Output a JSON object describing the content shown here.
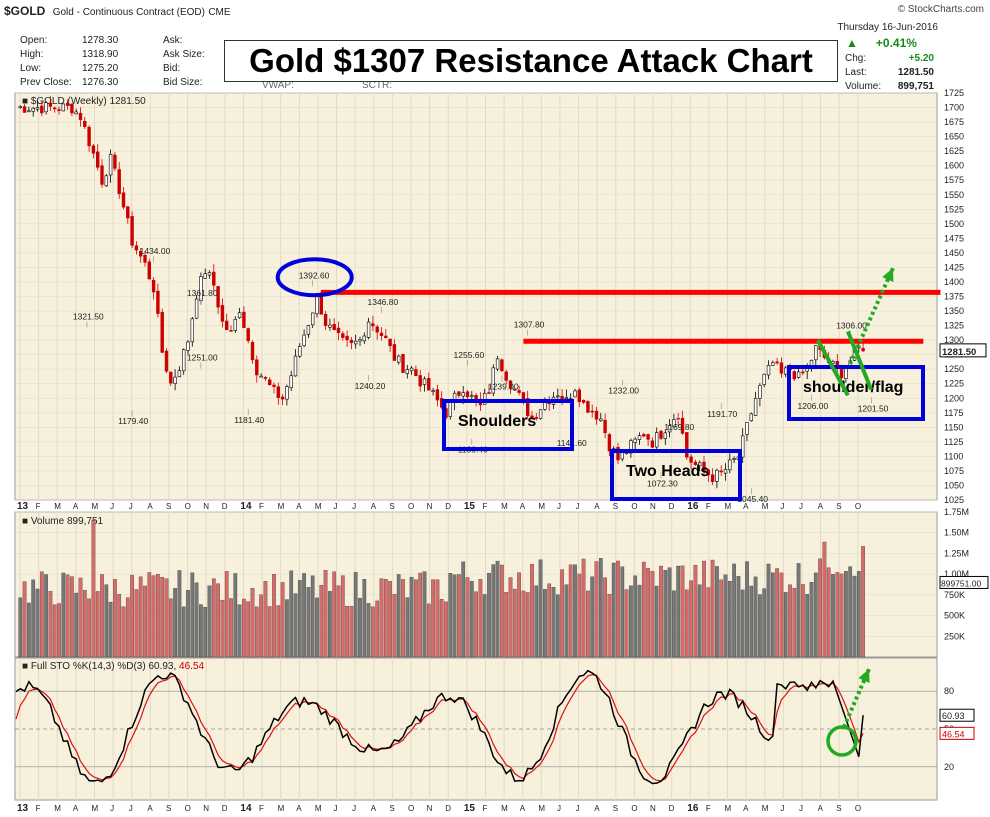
{
  "header": {
    "symbol": "$GOLD",
    "description": "Gold - Continuous Contract (EOD)",
    "exchange": "CME",
    "source": "© StockCharts.com",
    "date": "Thursday 16-Jun-2016",
    "open_label": "Open:",
    "open": "1278.30",
    "high_label": "High:",
    "high": "1318.90",
    "low_label": "Low:",
    "low": "1275.20",
    "prev_label": "Prev Close:",
    "prev": "1276.30",
    "ask_label": "Ask:",
    "asksize_label": "Ask Size:",
    "bid_label": "Bid:",
    "bidsize_label": "Bid Size:",
    "vwap_label": "VWAP:",
    "sctr_label": "SCTR:",
    "pct_change": "+0.41%",
    "chg_label": "Chg:",
    "chg": "+5.20",
    "last_label": "Last:",
    "last": "1281.50",
    "volume_label": "Volume:",
    "volume": "899,751"
  },
  "title_box": "Gold $1307 Resistance Attack Chart",
  "colors": {
    "up": "#000000",
    "down": "#cc0000",
    "resistance": "#ff0000",
    "annotation_box": "#0000dd",
    "flag": "#22aa22",
    "arrow": "#22aa22",
    "panel_bg": "#f6f0dc"
  },
  "chart_data": [
    {
      "type": "candlestick",
      "legend": "$GOLD (Weekly) 1281.50",
      "ylim": [
        1025,
        1725
      ],
      "yticks": [
        "1025",
        "1050",
        "1075",
        "1100",
        "1125",
        "1150",
        "1175",
        "1200",
        "1225",
        "1250",
        "1275",
        "1300",
        "1325",
        "1350",
        "1375",
        "1400",
        "1425",
        "1450",
        "1475",
        "1500",
        "1525",
        "1550",
        "1575",
        "1600",
        "1625",
        "1650",
        "1675",
        "1700",
        "1725"
      ],
      "x_months": [
        "13",
        "F",
        "M",
        "A",
        "M",
        "J",
        "J",
        "A",
        "S",
        "O",
        "N",
        "D",
        "14",
        "F",
        "M",
        "A",
        "M",
        "J",
        "J",
        "A",
        "S",
        "O",
        "N",
        "D",
        "15",
        "F",
        "M",
        "A",
        "M",
        "J",
        "J",
        "A",
        "S",
        "O",
        "N",
        "D",
        "16",
        "F",
        "M",
        "A",
        "M",
        "J",
        "J",
        "A",
        "S",
        "O"
      ],
      "last_price_tag": "1281.50",
      "key_points": [
        {
          "x": 13,
          "y": 1700
        },
        {
          "x": 15,
          "y": 1685
        },
        {
          "x": 18,
          "y": 1620
        },
        {
          "x": 20,
          "y": 1575
        },
        {
          "x": 22,
          "y": 1610
        },
        {
          "x": 24,
          "y": 1560
        },
        {
          "x": 27,
          "y": 1470
        },
        {
          "x": 30,
          "y": 1430
        },
        {
          "x": 32,
          "y": 1390
        },
        {
          "x": 34,
          "y": 1280
        },
        {
          "x": 36,
          "y": 1225
        },
        {
          "x": 38,
          "y": 1255
        },
        {
          "x": 40,
          "y": 1300
        },
        {
          "x": 42,
          "y": 1380
        },
        {
          "x": 44,
          "y": 1420
        },
        {
          "x": 46,
          "y": 1395
        },
        {
          "x": 48,
          "y": 1330
        },
        {
          "x": 50,
          "y": 1310
        },
        {
          "x": 52,
          "y": 1355
        },
        {
          "x": 54,
          "y": 1300
        },
        {
          "x": 56,
          "y": 1250
        },
        {
          "x": 58,
          "y": 1230
        },
        {
          "x": 60,
          "y": 1210
        },
        {
          "x": 62,
          "y": 1200
        },
        {
          "x": 64,
          "y": 1240
        },
        {
          "x": 66,
          "y": 1290
        },
        {
          "x": 68,
          "y": 1330
        },
        {
          "x": 70,
          "y": 1375
        },
        {
          "x": 72,
          "y": 1330
        },
        {
          "x": 74,
          "y": 1310
        },
        {
          "x": 76,
          "y": 1295
        },
        {
          "x": 78,
          "y": 1290
        },
        {
          "x": 80,
          "y": 1300
        },
        {
          "x": 82,
          "y": 1335
        },
        {
          "x": 84,
          "y": 1320
        },
        {
          "x": 86,
          "y": 1300
        },
        {
          "x": 88,
          "y": 1270
        },
        {
          "x": 90,
          "y": 1255
        },
        {
          "x": 92,
          "y": 1250
        },
        {
          "x": 94,
          "y": 1230
        },
        {
          "x": 96,
          "y": 1215
        },
        {
          "x": 98,
          "y": 1195
        },
        {
          "x": 100,
          "y": 1175
        },
        {
          "x": 102,
          "y": 1200
        },
        {
          "x": 104,
          "y": 1220
        },
        {
          "x": 106,
          "y": 1200
        },
        {
          "x": 108,
          "y": 1185
        },
        {
          "x": 110,
          "y": 1215
        },
        {
          "x": 112,
          "y": 1275
        },
        {
          "x": 114,
          "y": 1240
        },
        {
          "x": 116,
          "y": 1215
        },
        {
          "x": 118,
          "y": 1190
        },
        {
          "x": 120,
          "y": 1165
        },
        {
          "x": 122,
          "y": 1185
        },
        {
          "x": 124,
          "y": 1200
        },
        {
          "x": 126,
          "y": 1210
        },
        {
          "x": 128,
          "y": 1195
        },
        {
          "x": 130,
          "y": 1220
        },
        {
          "x": 132,
          "y": 1190
        },
        {
          "x": 134,
          "y": 1180
        },
        {
          "x": 136,
          "y": 1165
        },
        {
          "x": 138,
          "y": 1120
        },
        {
          "x": 140,
          "y": 1095
        },
        {
          "x": 142,
          "y": 1110
        },
        {
          "x": 144,
          "y": 1125
        },
        {
          "x": 146,
          "y": 1140
        },
        {
          "x": 148,
          "y": 1125
        },
        {
          "x": 150,
          "y": 1140
        },
        {
          "x": 152,
          "y": 1160
        },
        {
          "x": 154,
          "y": 1175
        },
        {
          "x": 156,
          "y": 1100
        },
        {
          "x": 158,
          "y": 1085
        },
        {
          "x": 160,
          "y": 1075
        },
        {
          "x": 162,
          "y": 1065
        },
        {
          "x": 164,
          "y": 1070
        },
        {
          "x": 166,
          "y": 1085
        },
        {
          "x": 168,
          "y": 1100
        },
        {
          "x": 170,
          "y": 1150
        },
        {
          "x": 172,
          "y": 1200
        },
        {
          "x": 174,
          "y": 1235
        },
        {
          "x": 176,
          "y": 1260
        },
        {
          "x": 178,
          "y": 1240
        },
        {
          "x": 180,
          "y": 1250
        },
        {
          "x": 182,
          "y": 1235
        },
        {
          "x": 184,
          "y": 1250
        },
        {
          "x": 186,
          "y": 1285
        },
        {
          "x": 188,
          "y": 1270
        },
        {
          "x": 190,
          "y": 1255
        },
        {
          "x": 192,
          "y": 1245
        },
        {
          "x": 194,
          "y": 1265
        },
        {
          "x": 196,
          "y": 1285
        },
        {
          "x": 197,
          "y": 1281.5
        }
      ],
      "labels": [
        {
          "text": "1321.50",
          "x": 16.5,
          "y": 1321.5
        },
        {
          "text": "1434.00",
          "x": 32,
          "y": 1434
        },
        {
          "text": "1179.40",
          "x": 27,
          "y": 1179.4
        },
        {
          "text": "1361.80",
          "x": 43,
          "y": 1361.8
        },
        {
          "text": "1251.00",
          "x": 43,
          "y": 1251
        },
        {
          "text": "1181.40",
          "x": 54,
          "y": 1181.4
        },
        {
          "text": "1392.60",
          "x": 69,
          "y": 1392.6
        },
        {
          "text": "1346.80",
          "x": 85,
          "y": 1346.8
        },
        {
          "text": "1240.20",
          "x": 82,
          "y": 1240.2
        },
        {
          "text": "1255.60",
          "x": 105,
          "y": 1255.6
        },
        {
          "text": "1239.00",
          "x": 113,
          "y": 1239
        },
        {
          "text": "1130.40",
          "x": 106,
          "y": 1130.4
        },
        {
          "text": "1307.80",
          "x": 119,
          "y": 1307.8
        },
        {
          "text": "1141.60",
          "x": 129,
          "y": 1141.6
        },
        {
          "text": "1232.00",
          "x": 141,
          "y": 1232
        },
        {
          "text": "1169.80",
          "x": 154,
          "y": 1169.8
        },
        {
          "text": "1191.70",
          "x": 164,
          "y": 1191.7
        },
        {
          "text": "1072.30",
          "x": 150,
          "y": 1072.3
        },
        {
          "text": "1045.40",
          "x": 171,
          "y": 1045.4
        },
        {
          "text": "1306.00",
          "x": 194,
          "y": 1306
        },
        {
          "text": "1206.00",
          "x": 185,
          "y": 1206
        },
        {
          "text": "1201.50",
          "x": 199,
          "y": 1201.5
        }
      ],
      "resistance_lines": [
        {
          "y": 1382,
          "x_start": 71,
          "x_end": 215
        },
        {
          "y": 1298,
          "x_start": 118,
          "x_end": 211
        }
      ]
    },
    {
      "type": "bar",
      "legend": "Volume 899,751",
      "ylim": [
        0,
        1750000
      ],
      "yticks": [
        "250K",
        "500K",
        "750K",
        "1.00M",
        "1.25M",
        "1.50M",
        "1.75M"
      ],
      "last_value_tag": "899751.00"
    },
    {
      "type": "line",
      "legend_prefix": "Full STO %K(14,3) %D(3)",
      "k_value": "60.93",
      "d_value": "46.54",
      "ylim": [
        0,
        100
      ],
      "yticks": [
        "20",
        "50",
        "80"
      ],
      "k_tag": "60.93",
      "d_tag": "46.54"
    }
  ],
  "annotations": {
    "shoulders": "Shoulders",
    "two_heads": "Two Heads",
    "shoulder_flag": "shoulder/flag"
  }
}
